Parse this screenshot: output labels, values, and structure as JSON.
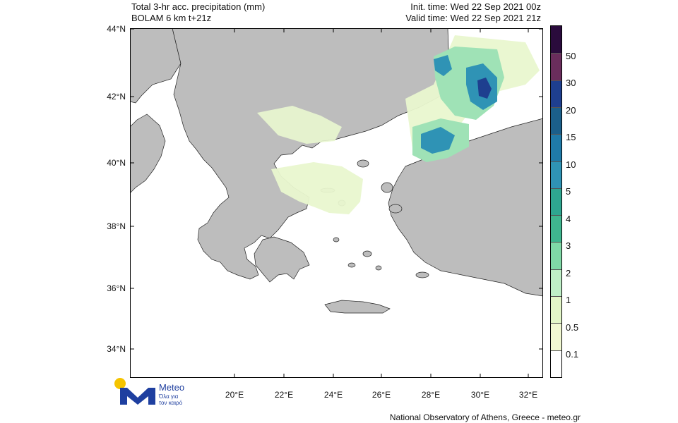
{
  "header": {
    "left_line1": "Total 3-hr acc. precipitation (mm)",
    "left_line2": "BOLAM 6 km t+21z",
    "right_line1": "Init. time: Wed 22 Sep 2021 00z",
    "right_line2": "Valid time: Wed 22 Sep 2021 21z"
  },
  "latitude_labels": [
    "44°N",
    "42°N",
    "40°N",
    "38°N",
    "36°N",
    "34°N"
  ],
  "longitude_labels": [
    "20°E",
    "22°E",
    "24°E",
    "26°E",
    "28°E",
    "30°E",
    "32°E"
  ],
  "colorbar": {
    "labels": [
      "50",
      "30",
      "20",
      "15",
      "10",
      "5",
      "4",
      "3",
      "2",
      "1",
      "0.5",
      "0.1"
    ],
    "colors": [
      "#2a0b3c",
      "#6a2d5c",
      "#1e3f8f",
      "#1b5f8a",
      "#1f7aa8",
      "#2f93b5",
      "#2ea690",
      "#3fb68f",
      "#7fd8a6",
      "#bfefc7",
      "#e3f6c8",
      "#f1f8d2",
      "#ffffff"
    ]
  },
  "logo": {
    "name": "Meteo",
    "tagline_line1": "Όλα για",
    "tagline_line2": "τον καιρό",
    "accent_yellow": "#f5c400",
    "accent_blue": "#1e3fa0"
  },
  "footer": {
    "credit": "National Observatory of Athens, Greece - meteo.gr"
  },
  "map_colors": {
    "land": "#bdbdbd",
    "sea": "#ffffff",
    "rain_light": "#e9f7cf",
    "rain_mid": "#9fe2b6",
    "rain_heavy": "#2f93b5",
    "rain_max": "#1e3f8f"
  }
}
